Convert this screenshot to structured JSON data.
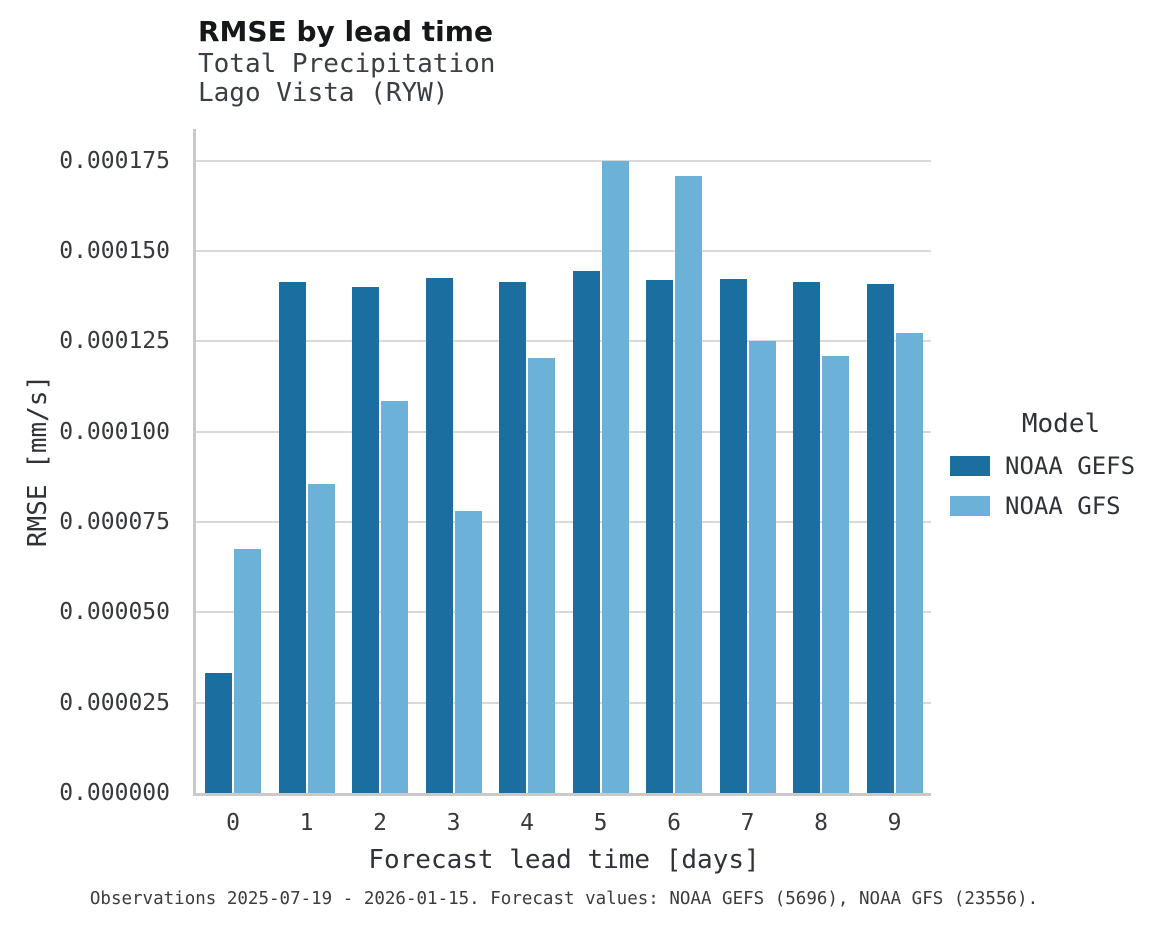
{
  "header": {
    "title": "RMSE by lead time"
  },
  "footer": {
    "caption": "Observations 2025-07-19 - 2026-01-15. Forecast values: NOAA GEFS (5696), NOAA GFS (23556)."
  },
  "chart_data": {
    "type": "bar",
    "title": "RMSE by lead time",
    "subtitle": [
      "Total Precipitation",
      "Lago Vista (RYW)"
    ],
    "categories": [
      "0",
      "1",
      "2",
      "3",
      "4",
      "5",
      "6",
      "7",
      "8",
      "9"
    ],
    "series": [
      {
        "name": "NOAA GEFS",
        "color": "#1b6fa0",
        "values": [
          3.33e-05,
          0.0001415,
          0.00014,
          0.0001425,
          0.0001415,
          0.0001445,
          0.000142,
          0.0001423,
          0.0001415,
          0.000141
        ]
      },
      {
        "name": "NOAA GFS",
        "color": "#6cb1d8",
        "values": [
          6.75e-05,
          8.55e-05,
          0.0001085,
          7.8e-05,
          0.0001205,
          0.000175,
          0.0001708,
          0.000125,
          0.000121,
          0.0001273
        ]
      }
    ],
    "xlabel": "Forecast lead time [days]",
    "ylabel": "RMSE [mm/s]",
    "ylim": [
      0,
      0.00018375
    ],
    "yticks": [
      0.0,
      2.5e-05,
      5e-05,
      7.5e-05,
      0.0001,
      0.000125,
      0.00015,
      0.000175
    ],
    "ytick_labels": [
      "0.000000",
      "0.000025",
      "0.000050",
      "0.000075",
      "0.000100",
      "0.000125",
      "0.000150",
      "0.000175"
    ],
    "legend_title": "Model",
    "legend_position": "right",
    "grid": "horizontal",
    "grid_color": "#d9d9d9",
    "spine_color": "#c9c9c9"
  }
}
